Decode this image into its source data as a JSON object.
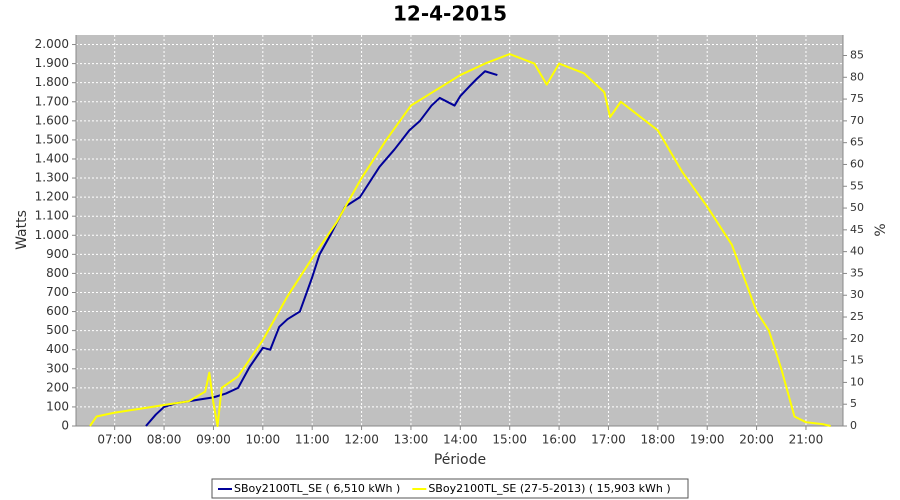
{
  "chart_data": {
    "type": "line",
    "title": "12-4-2015",
    "y_label": "Watts",
    "y2_label": "%",
    "x_label": "Période",
    "grid": true,
    "xlim": [
      "06:13",
      "21:45"
    ],
    "xticks": [
      "07:00",
      "08:00",
      "09:00",
      "10:00",
      "11:00",
      "12:00",
      "13:00",
      "14:00",
      "15:00",
      "16:00",
      "17:00",
      "18:00",
      "19:00",
      "20:00",
      "21:00"
    ],
    "ylim": [
      0,
      2050
    ],
    "yticks": [
      0,
      100,
      200,
      300,
      400,
      500,
      600,
      700,
      800,
      900,
      {
        "value": 1000,
        "label": "1.000"
      },
      {
        "value": 1100,
        "label": "1.100"
      },
      {
        "value": 1200,
        "label": "1.200"
      },
      {
        "value": 1300,
        "label": "1.300"
      },
      {
        "value": 1400,
        "label": "1.400"
      },
      {
        "value": 1500,
        "label": "1.500"
      },
      {
        "value": 1600,
        "label": "1.600"
      },
      {
        "value": 1700,
        "label": "1.700"
      },
      {
        "value": 1800,
        "label": "1.800"
      },
      {
        "value": 1900,
        "label": "1.900"
      },
      {
        "value": 2000,
        "label": "2.000"
      }
    ],
    "y2lim": [
      0,
      89.7
    ],
    "y2ticks": [
      0,
      5,
      10,
      15,
      20,
      25,
      30,
      35,
      40,
      45,
      50,
      55,
      60,
      65,
      70,
      75,
      80,
      85
    ],
    "series": [
      {
        "name": "SBoy2100TL_SE ( 6,510 kWh )",
        "color": "#000099",
        "x": [
          "07:38",
          "07:50",
          "08:00",
          "08:15",
          "08:30",
          "08:45",
          "09:00",
          "09:15",
          "09:30",
          "09:44",
          "10:00",
          "10:09",
          "10:20",
          "10:30",
          "10:45",
          "11:00",
          "11:09",
          "11:22",
          "11:40",
          "11:58",
          "12:10",
          "12:22",
          "12:40",
          "12:58",
          "13:11",
          "13:25",
          "13:35",
          "13:53",
          "14:00",
          "14:11",
          "14:20",
          "14:30",
          "14:45"
        ],
        "values": [
          0,
          60,
          100,
          120,
          130,
          140,
          150,
          170,
          200,
          310,
          410,
          400,
          520,
          560,
          600,
          780,
          900,
          1000,
          1150,
          1200,
          1280,
          1360,
          1450,
          1550,
          1600,
          1680,
          1720,
          1680,
          1730,
          1780,
          1820,
          1860,
          1840
        ]
      },
      {
        "name": "SBoy2100TL_SE (27-5-2013) ( 15,903 kWh )",
        "color": "#ffff00",
        "x": [
          "06:30",
          "06:38",
          "07:00",
          "07:30",
          "08:00",
          "08:30",
          "08:50",
          "08:55",
          "09:00",
          "09:05",
          "09:10",
          "09:30",
          "10:00",
          "10:30",
          "11:00",
          "11:30",
          "12:00",
          "12:30",
          "13:00",
          "13:30",
          "14:00",
          "14:30",
          "15:00",
          "15:30",
          "15:45",
          "16:00",
          "16:30",
          "16:55",
          "17:02",
          "17:15",
          "17:30",
          "18:00",
          "18:30",
          "19:00",
          "19:30",
          "20:00",
          "20:15",
          "20:30",
          "20:46",
          "21:00",
          "21:20",
          "21:30"
        ],
        "values": [
          0,
          50,
          70,
          90,
          110,
          130,
          180,
          280,
          120,
          0,
          200,
          260,
          450,
          680,
          880,
          1070,
          1300,
          1500,
          1680,
          1760,
          1840,
          1900,
          1950,
          1900,
          1790,
          1900,
          1850,
          1750,
          1620,
          1700,
          1650,
          1550,
          1330,
          1150,
          950,
          600,
          500,
          300,
          50,
          20,
          10,
          0
        ]
      }
    ]
  }
}
